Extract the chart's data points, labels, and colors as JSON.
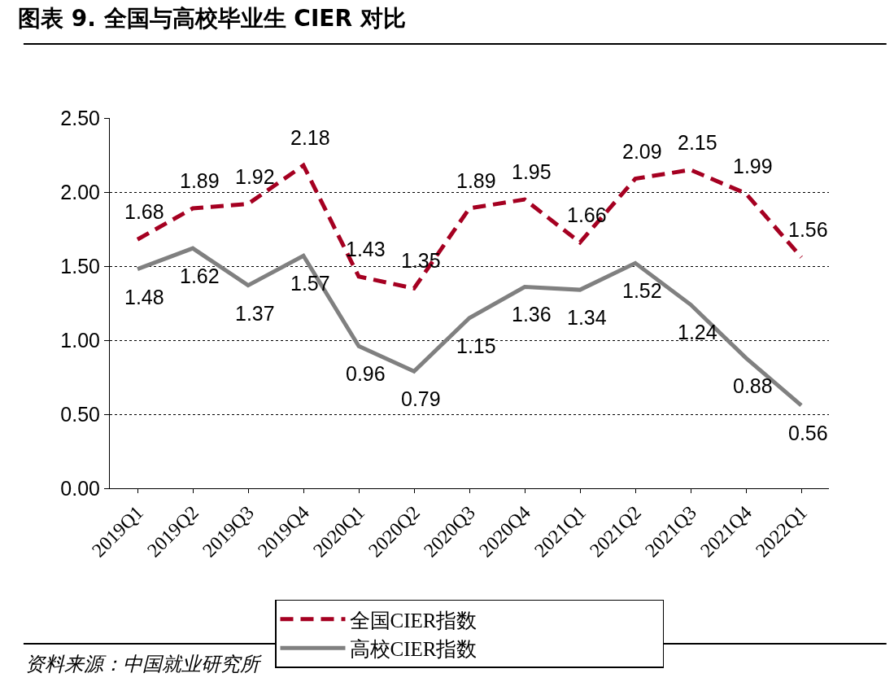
{
  "chart_data": {
    "type": "line",
    "title": "图表 9. 全国与高校毕业生 CIER 对比",
    "categories": [
      "2019Q1",
      "2019Q2",
      "2019Q3",
      "2019Q4",
      "2020Q1",
      "2020Q2",
      "2020Q3",
      "2020Q4",
      "2021Q1",
      "2021Q2",
      "2021Q3",
      "2021Q4",
      "2022Q1"
    ],
    "series": [
      {
        "name": "全国CIER指数",
        "color": "#a50021",
        "line_style": "dashed",
        "values": [
          1.68,
          1.89,
          1.92,
          2.18,
          1.43,
          1.35,
          1.89,
          1.95,
          1.66,
          2.09,
          2.15,
          1.99,
          1.56
        ]
      },
      {
        "name": "高校CIER指数",
        "color": "#808080",
        "line_style": "solid",
        "values": [
          1.48,
          1.62,
          1.37,
          1.57,
          0.96,
          0.79,
          1.15,
          1.36,
          1.34,
          1.52,
          1.24,
          0.88,
          0.56
        ]
      }
    ],
    "ylim": [
      0,
      2.5
    ],
    "yticks": [
      {
        "value": 0,
        "label": "0.00"
      },
      {
        "value": 0.5,
        "label": "0.50"
      },
      {
        "value": 1,
        "label": "1.00"
      },
      {
        "value": 1.5,
        "label": "1.50"
      },
      {
        "value": 2,
        "label": "2.00"
      },
      {
        "value": 2.5,
        "label": "2.50"
      }
    ],
    "grid": "y",
    "legend": "bottom",
    "marker": "none",
    "data_labels": true,
    "annotations": [
      "资料来源：中国就业研究所"
    ]
  }
}
